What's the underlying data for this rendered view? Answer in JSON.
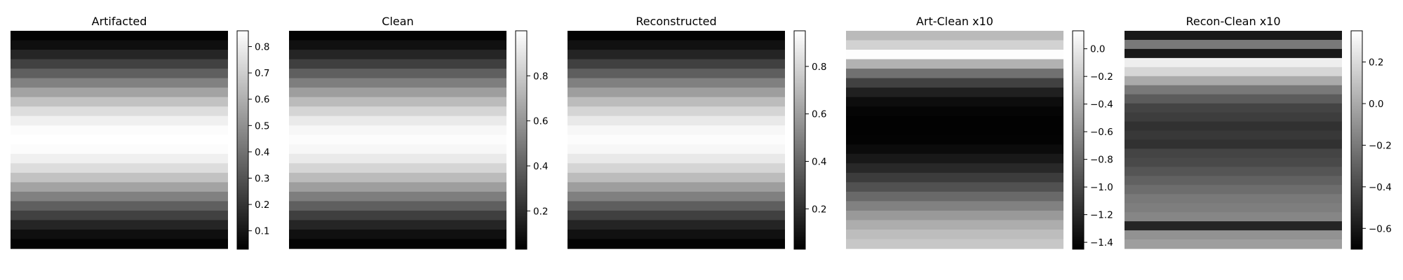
{
  "chart_data": [
    {
      "type": "heatmap",
      "title": "Artifacted",
      "colormap": "gray",
      "axes_visible": false,
      "grid": false,
      "color_range": [
        0.03,
        0.86
      ],
      "colorbar_ticks": [
        0.1,
        0.2,
        0.3,
        0.4,
        0.5,
        0.6,
        0.7,
        0.8
      ],
      "colorbar_tick_labels": [
        "0.1",
        "0.2",
        "0.3",
        "0.4",
        "0.5",
        "0.6",
        "0.7",
        "0.8"
      ],
      "row_profile": [
        0.04,
        0.08,
        0.15,
        0.24,
        0.34,
        0.45,
        0.56,
        0.66,
        0.75,
        0.81,
        0.85,
        0.86,
        0.85,
        0.81,
        0.75,
        0.66,
        0.56,
        0.45,
        0.34,
        0.24,
        0.15,
        0.08,
        0.04
      ]
    },
    {
      "type": "heatmap",
      "title": "Clean",
      "colormap": "gray",
      "axes_visible": false,
      "grid": false,
      "color_range": [
        0.03,
        1.0
      ],
      "colorbar_ticks": [
        0.2,
        0.4,
        0.6,
        0.8
      ],
      "colorbar_tick_labels": [
        "0.2",
        "0.4",
        "0.6",
        "0.8"
      ],
      "row_profile": [
        0.04,
        0.09,
        0.17,
        0.27,
        0.39,
        0.51,
        0.63,
        0.74,
        0.84,
        0.92,
        0.97,
        0.99,
        0.97,
        0.92,
        0.84,
        0.74,
        0.63,
        0.51,
        0.39,
        0.27,
        0.17,
        0.09,
        0.04
      ]
    },
    {
      "type": "heatmap",
      "title": "Reconstructed",
      "colormap": "gray",
      "axes_visible": false,
      "grid": false,
      "color_range": [
        0.03,
        0.95
      ],
      "colorbar_ticks": [
        0.2,
        0.4,
        0.6,
        0.8
      ],
      "colorbar_tick_labels": [
        "0.2",
        "0.4",
        "0.6",
        "0.8"
      ],
      "row_profile": [
        0.04,
        0.09,
        0.16,
        0.26,
        0.37,
        0.49,
        0.6,
        0.71,
        0.8,
        0.87,
        0.92,
        0.94,
        0.92,
        0.87,
        0.8,
        0.71,
        0.6,
        0.49,
        0.37,
        0.26,
        0.16,
        0.09,
        0.04
      ]
    },
    {
      "type": "heatmap",
      "title": "Art-Clean x10",
      "colormap": "gray",
      "axes_visible": false,
      "grid": false,
      "color_range": [
        -1.45,
        0.13
      ],
      "colorbar_ticks": [
        0.0,
        -0.2,
        -0.4,
        -0.6,
        -0.8,
        -1.0,
        -1.2,
        -1.4
      ],
      "colorbar_tick_labels": [
        "0.0",
        "−0.2",
        "−0.4",
        "−0.6",
        "−0.8",
        "−1.0",
        "−1.2",
        "−1.4"
      ],
      "row_profile": [
        -0.3,
        -0.15,
        0.12,
        -0.35,
        -0.75,
        -1.05,
        -1.25,
        -1.37,
        -1.42,
        -1.44,
        -1.44,
        -1.43,
        -1.38,
        -1.3,
        -1.2,
        -1.08,
        -0.95,
        -0.8,
        -0.65,
        -0.5,
        -0.38,
        -0.28,
        -0.22
      ]
    },
    {
      "type": "heatmap",
      "title": "Recon-Clean x10",
      "colormap": "gray",
      "axes_visible": false,
      "grid": false,
      "color_range": [
        -0.7,
        0.35
      ],
      "colorbar_ticks": [
        0.2,
        0.0,
        -0.2,
        -0.4,
        -0.6
      ],
      "colorbar_tick_labels": [
        "0.2",
        "0.0",
        "−0.2",
        "−0.4",
        "−0.6"
      ],
      "row_profile": [
        -0.6,
        -0.2,
        -0.6,
        0.28,
        0.18,
        0.0,
        -0.2,
        -0.32,
        -0.42,
        -0.45,
        -0.5,
        -0.47,
        -0.5,
        -0.42,
        -0.4,
        -0.35,
        -0.3,
        -0.25,
        -0.2,
        -0.18,
        -0.15,
        -0.55,
        -0.1,
        -0.05
      ]
    }
  ]
}
